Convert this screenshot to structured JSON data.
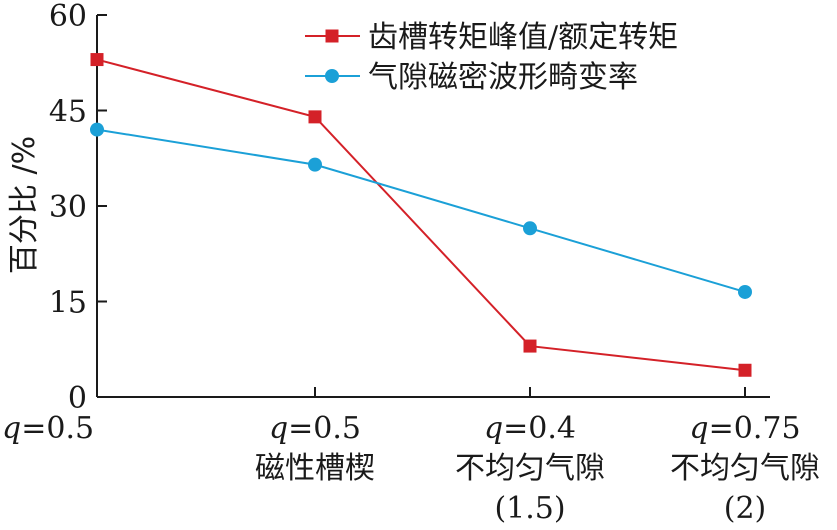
{
  "chart_data": {
    "type": "line",
    "ylabel": "百分比 /%",
    "ylim": [
      0,
      60
    ],
    "yticks": [
      "0",
      "15",
      "30",
      "45",
      "60"
    ],
    "categories": [
      {
        "line1": "q=0.5",
        "line2": "",
        "line3": ""
      },
      {
        "line1": "q=0.5",
        "line2": "磁性槽楔",
        "line3": ""
      },
      {
        "line1": "q=0.4",
        "line2": "不均匀气隙",
        "line3": "(1.5)"
      },
      {
        "line1": "q=0.75",
        "line2": "不均匀气隙",
        "line3": "(2)"
      }
    ],
    "series": [
      {
        "name": "齿槽转矩峰值/额定转矩",
        "color": "#d42128",
        "marker": "square",
        "values": [
          53,
          44,
          8,
          4.2
        ]
      },
      {
        "name": "气隙磁密波形畸变率",
        "color": "#1ba0d7",
        "marker": "circle",
        "values": [
          42,
          36.5,
          26.5,
          16.5
        ]
      }
    ],
    "legend_position": "top-right",
    "grid": false
  }
}
